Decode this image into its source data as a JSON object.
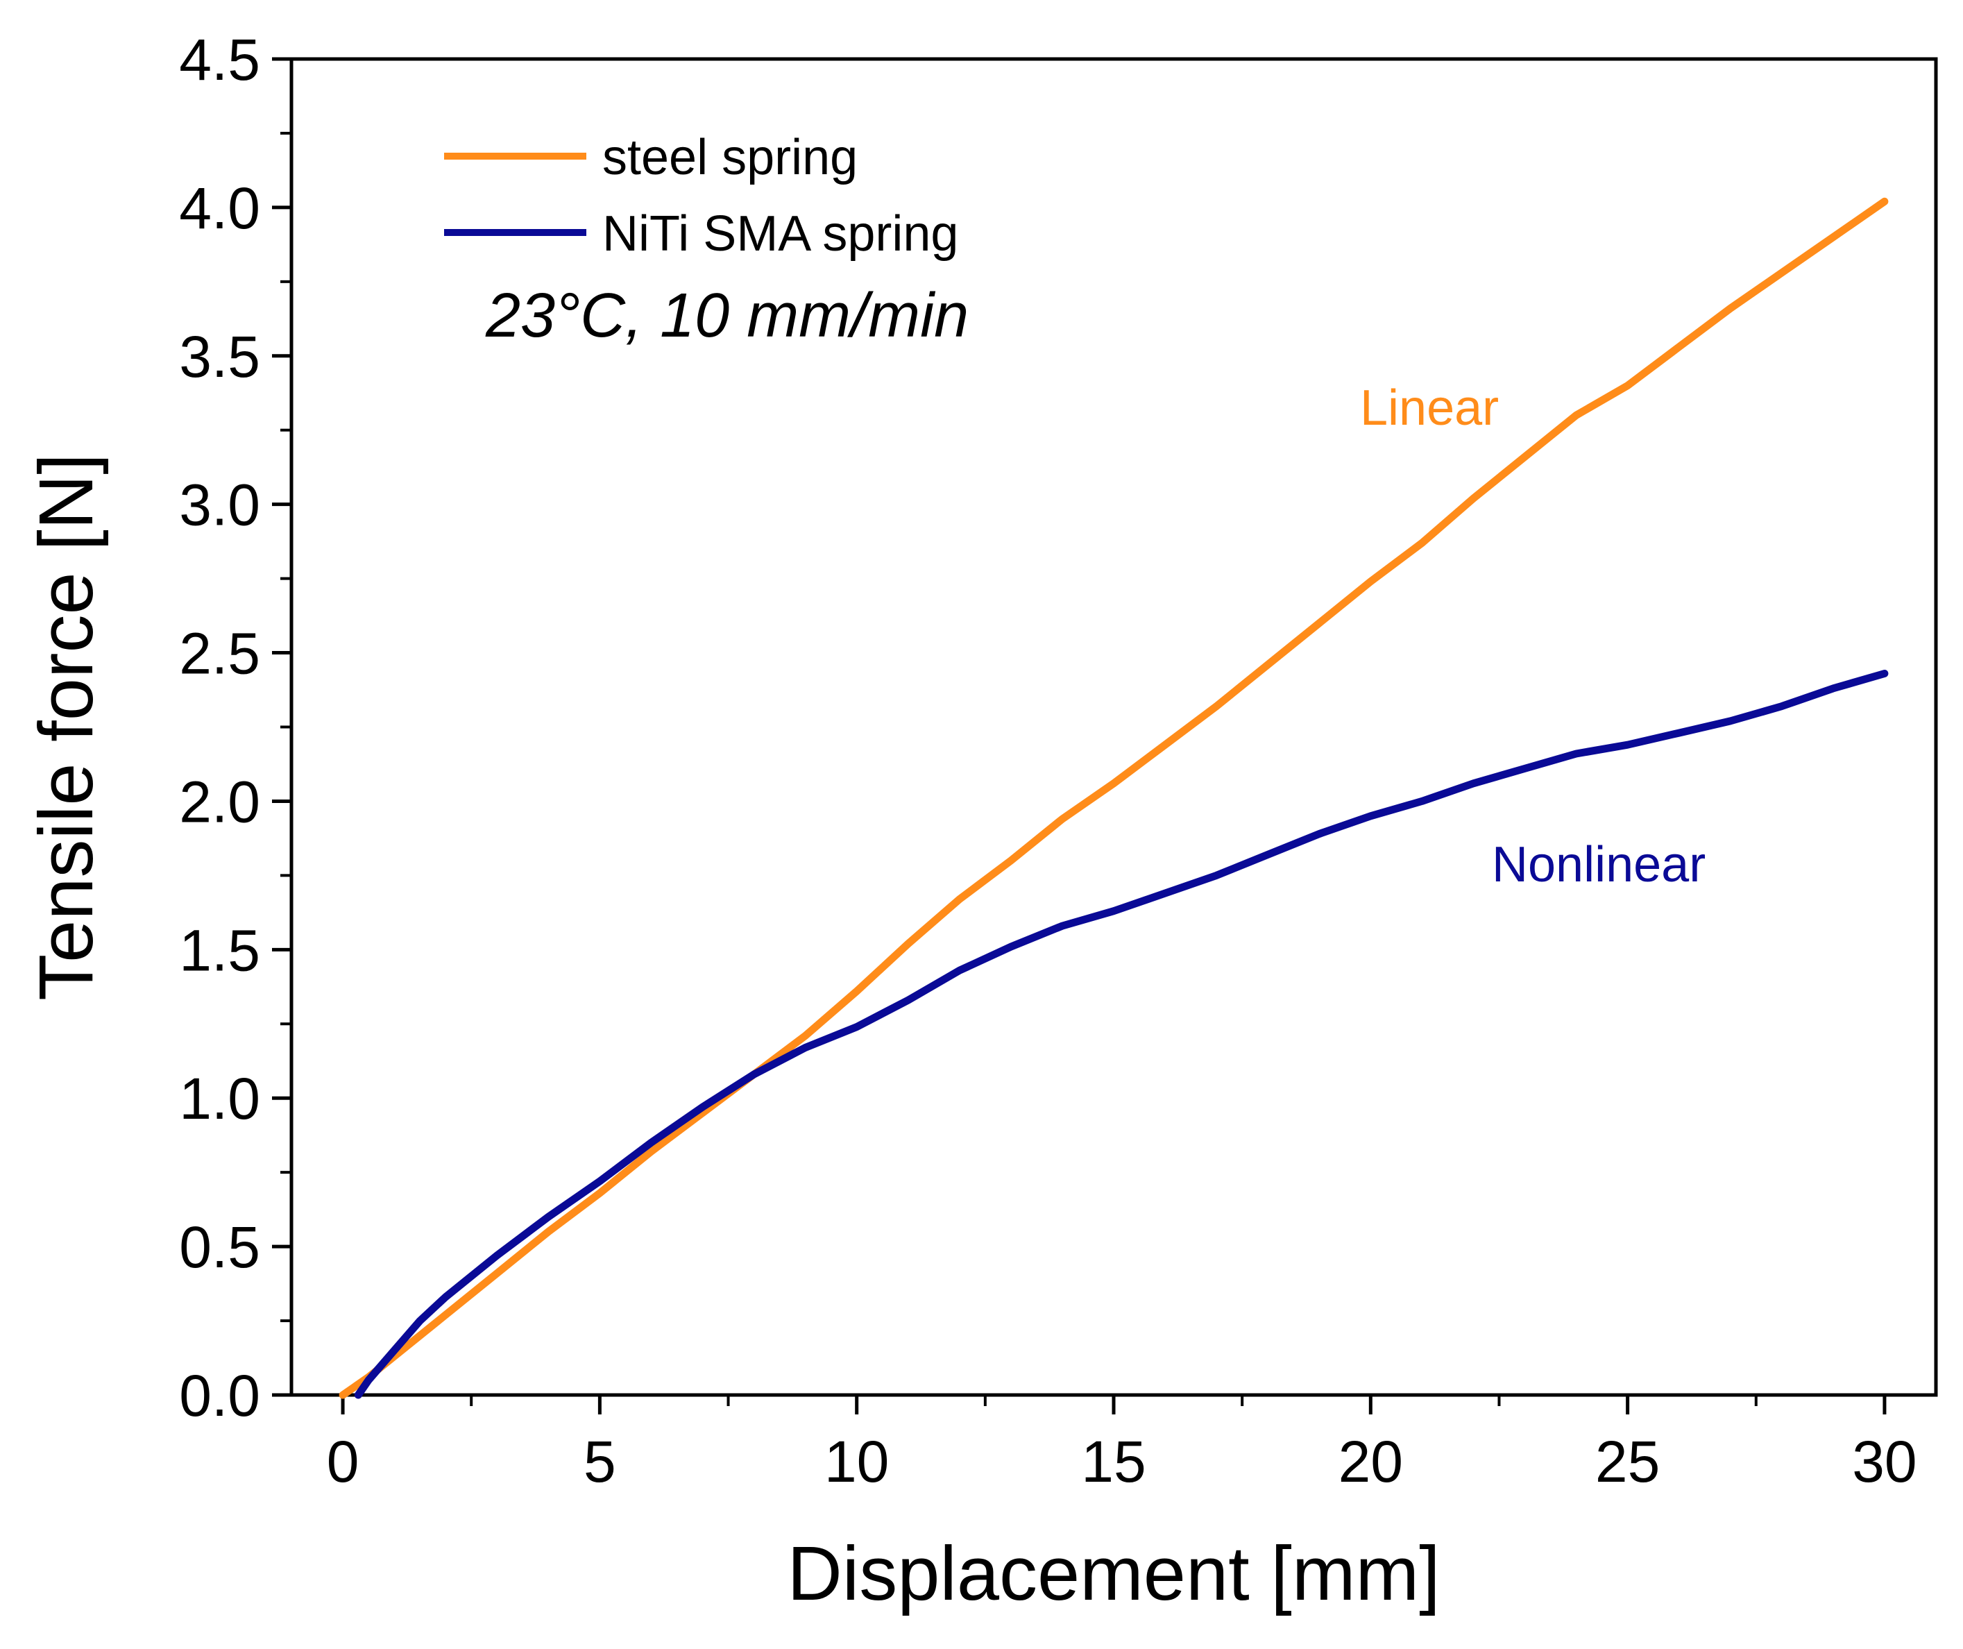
{
  "chart_data": {
    "type": "line",
    "title": "",
    "xlabel": "Displacement [mm]",
    "ylabel": "Tensile force [N]",
    "xlim": [
      -1,
      31
    ],
    "ylim": [
      0,
      4.5
    ],
    "xticks": [
      0,
      5,
      10,
      15,
      20,
      25,
      30
    ],
    "yticks": [
      0.0,
      0.5,
      1.0,
      1.5,
      2.0,
      2.5,
      3.0,
      3.5,
      4.0,
      4.5
    ],
    "x_tick_labels": [
      "0",
      "5",
      "10",
      "15",
      "20",
      "25",
      "30"
    ],
    "y_tick_labels": [
      "0.0",
      "0.5",
      "1.0",
      "1.5",
      "2.0",
      "2.5",
      "3.0",
      "3.5",
      "4.0",
      "4.5"
    ],
    "grid": false,
    "legend_position": "top-left",
    "condition_text": "23°C, 10 mm/min",
    "series": [
      {
        "name": "steel spring",
        "color": "#FF8C1A",
        "x": [
          0,
          0.5,
          1,
          2,
          3,
          4,
          5,
          6,
          7,
          8,
          9,
          10,
          11,
          12,
          13,
          14,
          15,
          16,
          17,
          18,
          19,
          20,
          21,
          22,
          23,
          24,
          25,
          26,
          27,
          28,
          29,
          30
        ],
        "y": [
          0.0,
          0.06,
          0.13,
          0.27,
          0.41,
          0.55,
          0.68,
          0.82,
          0.95,
          1.08,
          1.21,
          1.36,
          1.52,
          1.67,
          1.8,
          1.94,
          2.06,
          2.19,
          2.32,
          2.46,
          2.6,
          2.74,
          2.87,
          3.02,
          3.16,
          3.3,
          3.4,
          3.53,
          3.66,
          3.78,
          3.9,
          4.02
        ]
      },
      {
        "name": "NiTi SMA spring",
        "color": "#0A0A96",
        "x": [
          0.3,
          0.5,
          1,
          1.5,
          2,
          3,
          4,
          5,
          6,
          7,
          8,
          9,
          10,
          11,
          12,
          13,
          14,
          15,
          16,
          17,
          18,
          19,
          20,
          21,
          22,
          23,
          24,
          25,
          26,
          27,
          28,
          29,
          30
        ],
        "y": [
          0.0,
          0.05,
          0.15,
          0.25,
          0.33,
          0.47,
          0.6,
          0.72,
          0.85,
          0.97,
          1.08,
          1.17,
          1.24,
          1.33,
          1.43,
          1.51,
          1.58,
          1.63,
          1.69,
          1.75,
          1.82,
          1.89,
          1.95,
          2.0,
          2.06,
          2.11,
          2.16,
          2.19,
          2.23,
          2.27,
          2.32,
          2.38,
          2.43
        ]
      }
    ],
    "annotations": [
      {
        "text": "Linear",
        "x": 21.5,
        "y": 3.3,
        "color": "#FF8C1A"
      },
      {
        "text": "Nonlinear",
        "x": 22.5,
        "y": 1.7,
        "color": "#0A0A96"
      }
    ]
  }
}
